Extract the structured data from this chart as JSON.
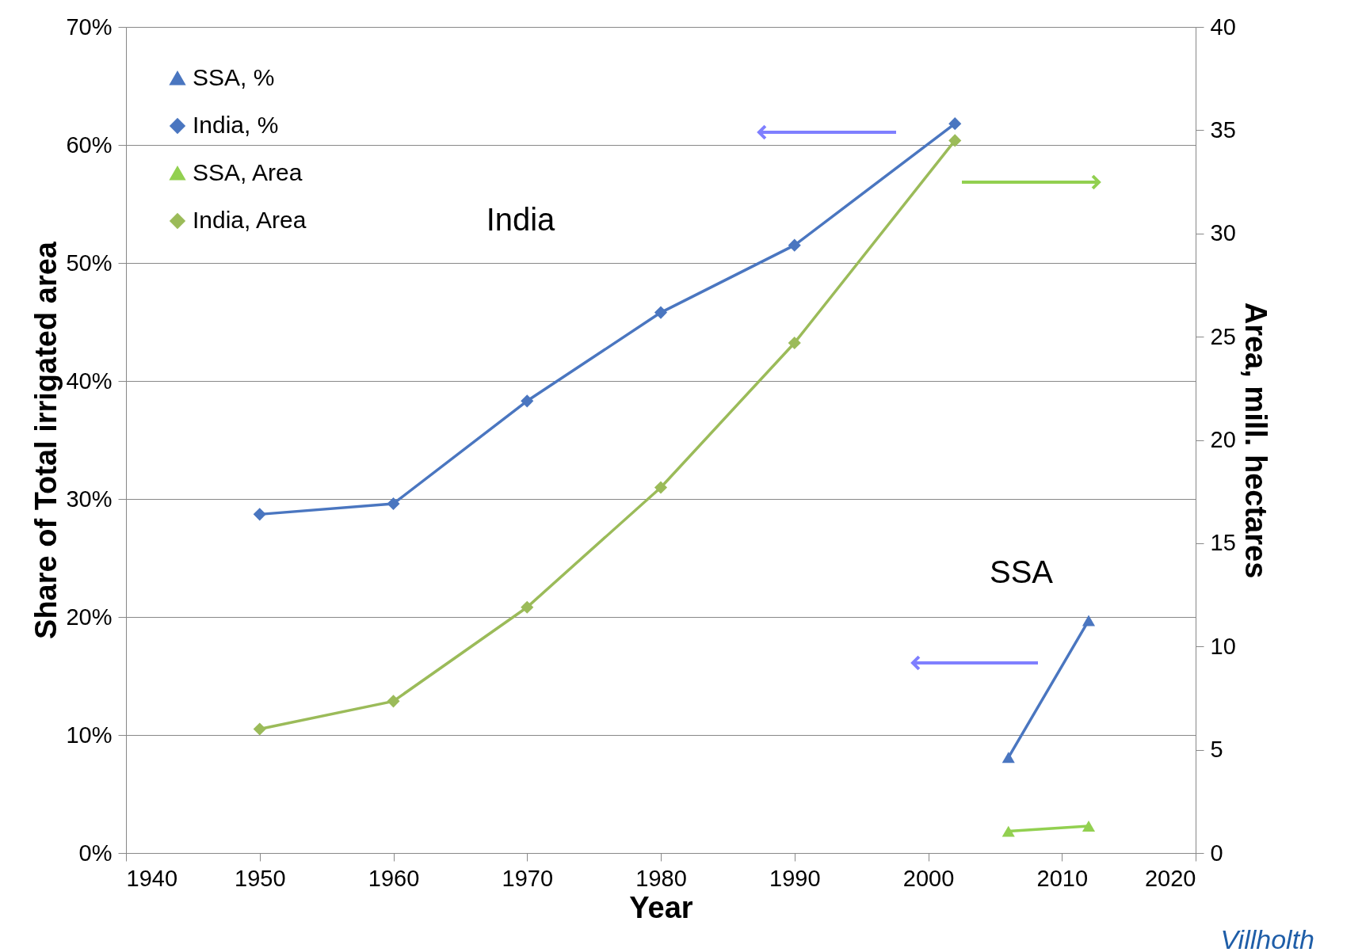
{
  "chart_data": {
    "type": "line",
    "xlabel": "Year",
    "ylabel": "Share of Total irrigated area",
    "y2label": "Area, mill. hectares",
    "xlim": [
      1940,
      2020
    ],
    "xticks": [
      1940,
      1950,
      1960,
      1970,
      1980,
      1990,
      2000,
      2010,
      2020
    ],
    "ylim": [
      0,
      70
    ],
    "yticks": [
      {
        "value": 0,
        "label": "0%"
      },
      {
        "value": 10,
        "label": "10%"
      },
      {
        "value": 20,
        "label": "20%"
      },
      {
        "value": 30,
        "label": "30%"
      },
      {
        "value": 40,
        "label": "40%"
      },
      {
        "value": 50,
        "label": "50%"
      },
      {
        "value": 60,
        "label": "60%"
      },
      {
        "value": 70,
        "label": "70%"
      }
    ],
    "y2lim": [
      0,
      40
    ],
    "y2ticks": [
      0,
      5,
      10,
      15,
      20,
      25,
      30,
      35,
      40
    ],
    "grid": "y",
    "legend": "top left",
    "series": [
      {
        "name": "SSA, %",
        "color": "#4a76c0",
        "marker": "triangle",
        "x": [
          2006,
          2012
        ],
        "values": [
          8.1,
          19.7
        ]
      },
      {
        "name": "India, %",
        "color": "#4a76c0",
        "marker": "diamond",
        "x": [
          1950,
          1960,
          1970,
          1980,
          1990,
          2002
        ],
        "values": [
          28.7,
          29.6,
          38.3,
          45.8,
          51.5,
          61.8
        ]
      },
      {
        "name": "SSA, Area",
        "color": "#92d050",
        "marker": "triangle",
        "axis": "y2",
        "x": [
          2006,
          2012
        ],
        "values": [
          1.05,
          1.3
        ]
      },
      {
        "name": "India, Area",
        "color": "#9bbb59",
        "marker": "diamond",
        "axis": "y2",
        "x": [
          1950,
          1960,
          1970,
          1980,
          1990,
          2002
        ],
        "values": [
          6.0,
          7.35,
          11.9,
          17.7,
          24.7,
          34.5
        ]
      }
    ],
    "annotations": [
      "India",
      "SSA",
      "Villholth"
    ]
  }
}
